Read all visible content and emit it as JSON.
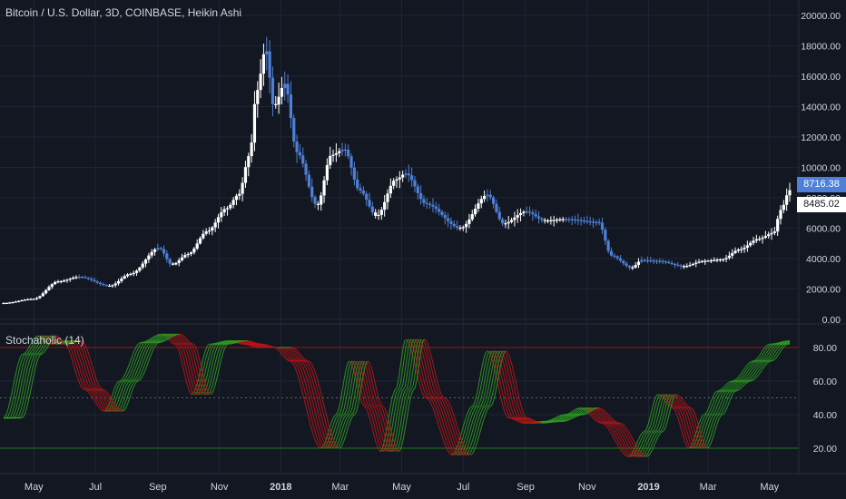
{
  "header": {
    "title": "Bitcoin / U.S. Dollar, 3D, COINBASE, Heikin Ashi",
    "indicator_title": "Stochaholic (14)"
  },
  "price_badges": {
    "last": "8716.38",
    "close": "8485.02"
  },
  "colors": {
    "background": "#131722",
    "grid": "#1f2433",
    "text": "#d1d4dc",
    "candle_up": "#ffffff",
    "candle_down": "#4d80d6",
    "stoch_up": "#2e9e24",
    "stoch_down": "#c01515",
    "level_80": "#8b1a1a",
    "level_20": "#1e7a1e",
    "level_50": "#5d606b"
  },
  "chart_data": [
    {
      "type": "candlestick",
      "title": "Bitcoin / U.S. Dollar, 3D, COINBASE, Heikin Ashi",
      "ylim": [
        0,
        20500
      ],
      "y_ticks": [
        "0.00",
        "2000.00",
        "4000.00",
        "6000.00",
        "8000.00",
        "10000.00",
        "12000.00",
        "14000.00",
        "16000.00",
        "18000.00",
        "20000.00"
      ],
      "y_tick_values": [
        0,
        2000,
        4000,
        6000,
        8000,
        10000,
        12000,
        14000,
        16000,
        18000,
        20000
      ],
      "x_ticks": [
        "May",
        "Jul",
        "Sep",
        "Nov",
        "2018",
        "Mar",
        "May",
        "Jul",
        "Sep",
        "Nov",
        "2019",
        "Mar",
        "May"
      ],
      "x_tick_dates": [
        "2017-05-01",
        "2017-07-01",
        "2017-09-01",
        "2017-11-01",
        "2018-01-01",
        "2018-03-01",
        "2018-05-01",
        "2018-07-01",
        "2018-09-01",
        "2018-11-01",
        "2019-01-01",
        "2019-03-01",
        "2019-05-01"
      ],
      "x_range": [
        "2017-04-01",
        "2019-05-21"
      ],
      "price_path": [
        [
          "2017-04-01",
          1080
        ],
        [
          "2017-05-01",
          1350
        ],
        [
          "2017-05-25",
          2500
        ],
        [
          "2017-06-15",
          2800
        ],
        [
          "2017-07-15",
          2200
        ],
        [
          "2017-08-05",
          3000
        ],
        [
          "2017-09-02",
          4700
        ],
        [
          "2017-09-15",
          3600
        ],
        [
          "2017-10-01",
          4300
        ],
        [
          "2017-10-20",
          5800
        ],
        [
          "2017-11-08",
          7300
        ],
        [
          "2017-11-20",
          8200
        ],
        [
          "2017-12-01",
          10800
        ],
        [
          "2017-12-08",
          15000
        ],
        [
          "2017-12-17",
          17800
        ],
        [
          "2017-12-25",
          14000
        ],
        [
          "2018-01-05",
          15500
        ],
        [
          "2018-01-17",
          11000
        ],
        [
          "2018-02-06",
          7500
        ],
        [
          "2018-02-20",
          10800
        ],
        [
          "2018-03-05",
          11200
        ],
        [
          "2018-03-20",
          8500
        ],
        [
          "2018-04-06",
          6800
        ],
        [
          "2018-04-25",
          9200
        ],
        [
          "2018-05-05",
          9600
        ],
        [
          "2018-05-25",
          7600
        ],
        [
          "2018-06-28",
          6000
        ],
        [
          "2018-07-25",
          8200
        ],
        [
          "2018-08-10",
          6300
        ],
        [
          "2018-09-01",
          7100
        ],
        [
          "2018-09-20",
          6500
        ],
        [
          "2018-10-10",
          6600
        ],
        [
          "2018-11-12",
          6400
        ],
        [
          "2018-11-25",
          4200
        ],
        [
          "2018-12-15",
          3400
        ],
        [
          "2018-12-25",
          3900
        ],
        [
          "2019-01-10",
          3850
        ],
        [
          "2019-02-05",
          3500
        ],
        [
          "2019-02-25",
          3850
        ],
        [
          "2019-03-15",
          3950
        ],
        [
          "2019-04-01",
          4600
        ],
        [
          "2019-04-20",
          5300
        ],
        [
          "2019-05-05",
          5700
        ],
        [
          "2019-05-12",
          7200
        ],
        [
          "2019-05-21",
          8500
        ]
      ]
    },
    {
      "type": "line",
      "title": "Stochaholic (14)",
      "ylim": [
        0,
        100
      ],
      "y_ticks": [
        "20.00",
        "40.00",
        "60.00",
        "80.00"
      ],
      "y_tick_values": [
        20,
        40,
        60,
        80
      ],
      "levels": [
        80,
        50,
        20
      ],
      "stoch_path": [
        [
          "2017-04-01",
          38
        ],
        [
          "2017-04-20",
          76
        ],
        [
          "2017-05-05",
          87
        ],
        [
          "2017-05-15",
          82
        ],
        [
          "2017-05-30",
          84
        ],
        [
          "2017-06-20",
          55
        ],
        [
          "2017-07-10",
          42
        ],
        [
          "2017-07-25",
          60
        ],
        [
          "2017-08-15",
          83
        ],
        [
          "2017-09-05",
          88
        ],
        [
          "2017-09-18",
          82
        ],
        [
          "2017-10-05",
          52
        ],
        [
          "2017-10-22",
          82
        ],
        [
          "2017-11-10",
          84
        ],
        [
          "2017-11-25",
          82
        ],
        [
          "2017-12-10",
          80
        ],
        [
          "2017-12-25",
          80
        ],
        [
          "2018-01-10",
          72
        ],
        [
          "2018-02-10",
          20
        ],
        [
          "2018-02-25",
          40
        ],
        [
          "2018-03-10",
          72
        ],
        [
          "2018-03-25",
          45
        ],
        [
          "2018-04-10",
          18
        ],
        [
          "2018-04-25",
          55
        ],
        [
          "2018-05-05",
          85
        ],
        [
          "2018-05-25",
          50
        ],
        [
          "2018-06-20",
          16
        ],
        [
          "2018-07-10",
          45
        ],
        [
          "2018-07-25",
          78
        ],
        [
          "2018-08-15",
          38
        ],
        [
          "2018-08-30",
          35
        ],
        [
          "2018-09-20",
          36
        ],
        [
          "2018-10-10",
          40
        ],
        [
          "2018-10-25",
          44
        ],
        [
          "2018-11-15",
          35
        ],
        [
          "2018-12-12",
          15
        ],
        [
          "2018-12-28",
          30
        ],
        [
          "2019-01-10",
          52
        ],
        [
          "2019-01-25",
          44
        ],
        [
          "2019-02-10",
          20
        ],
        [
          "2019-02-25",
          40
        ],
        [
          "2019-03-10",
          54
        ],
        [
          "2019-03-25",
          60
        ],
        [
          "2019-04-15",
          72
        ],
        [
          "2019-05-01",
          82
        ],
        [
          "2019-05-21",
          84
        ]
      ]
    }
  ]
}
